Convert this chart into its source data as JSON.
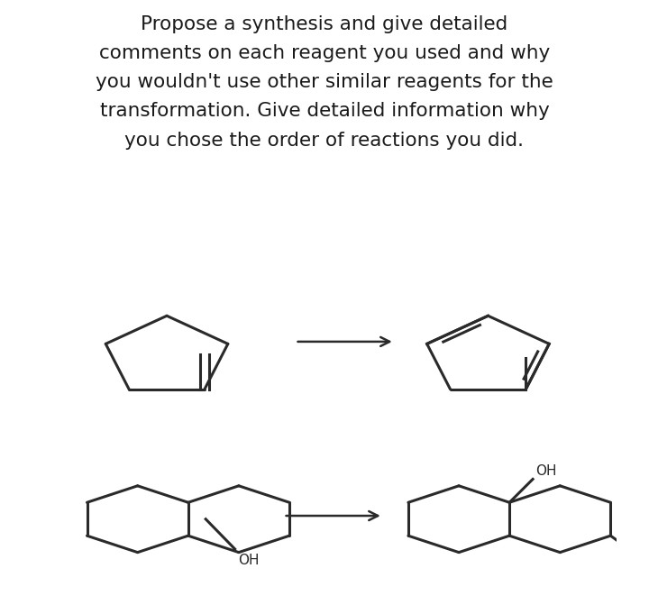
{
  "title_lines": [
    "Propose a synthesis and give detailed",
    "comments on each reagent you used and why",
    "you wouldn't use other similar reagents for the",
    "transformation. Give detailed information why",
    "you chose the order of reactions you did."
  ],
  "text_color": "#1a1a1a",
  "bg_color": "#ffffff",
  "panel1_bg": "#d8d0c8",
  "panel2_bg": "#c8cfc8",
  "title_fontsize": 15.5,
  "fig_width": 7.2,
  "fig_height": 6.71
}
